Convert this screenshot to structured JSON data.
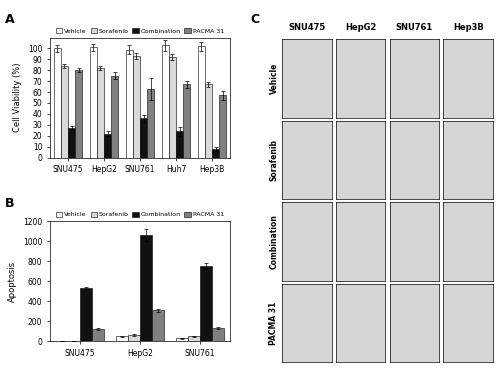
{
  "chart_data": [
    {
      "type": "bar",
      "panel": "A",
      "y_label": "Cell Viability (%)",
      "categories": [
        "SNU475",
        "HepG2",
        "SNU761",
        "Huh7",
        "Hep3B"
      ],
      "series": [
        {
          "name": "Vehicle",
          "color": "#ffffff",
          "values": [
            100,
            101,
            99,
            103,
            102
          ],
          "errors": [
            3,
            3,
            4,
            5,
            4
          ]
        },
        {
          "name": "Sorafenib",
          "color": "#d9d9d9",
          "values": [
            84,
            82,
            93,
            92,
            67
          ],
          "errors": [
            2,
            2,
            3,
            3,
            2
          ]
        },
        {
          "name": "Combination",
          "color": "#111111",
          "values": [
            27,
            22,
            36,
            24,
            8
          ],
          "errors": [
            2,
            2,
            3,
            4,
            2
          ]
        },
        {
          "name": "PACMA 31",
          "color": "#808080",
          "values": [
            80,
            75,
            63,
            67,
            57
          ],
          "errors": [
            2,
            3,
            10,
            3,
            4
          ]
        }
      ],
      "ylim": [
        0,
        110
      ],
      "yticks": [
        0,
        10,
        20,
        30,
        40,
        50,
        60,
        70,
        80,
        90,
        100
      ],
      "legend": "top"
    },
    {
      "type": "bar",
      "panel": "B",
      "y_label": "Apoptosis",
      "categories": [
        "SNU475",
        "HepG2",
        "SNU761"
      ],
      "series": [
        {
          "name": "Vehicle",
          "color": "#ffffff",
          "values": [
            5,
            50,
            30
          ],
          "errors": [
            2,
            5,
            5
          ]
        },
        {
          "name": "Sorafenib",
          "color": "#d9d9d9",
          "values": [
            5,
            60,
            50
          ],
          "errors": [
            2,
            8,
            6
          ]
        },
        {
          "name": "Combination",
          "color": "#111111",
          "values": [
            530,
            1060,
            750
          ],
          "errors": [
            15,
            60,
            30
          ]
        },
        {
          "name": "PACMA 31",
          "color": "#808080",
          "values": [
            120,
            310,
            130
          ],
          "errors": [
            8,
            15,
            10
          ]
        }
      ],
      "ylim": [
        0,
        1200
      ],
      "yticks": [
        0,
        200,
        400,
        600,
        800,
        1000,
        1200
      ],
      "legend": "top"
    }
  ],
  "image_panel": {
    "panel": "C",
    "columns": [
      "SNU475",
      "HepG2",
      "SNU761",
      "Hep3B"
    ],
    "rows": [
      "Vehicle",
      "Sorafenib",
      "Combination",
      "PACMA 31"
    ]
  }
}
